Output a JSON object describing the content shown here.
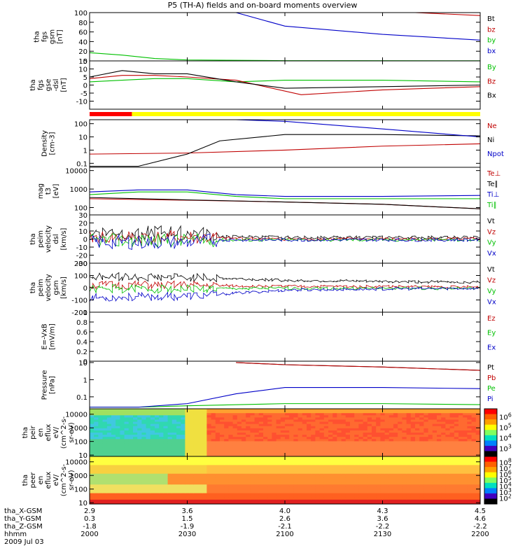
{
  "title": "P5 (TH-A) fields and on-board moments overview",
  "chart_data": [
    {
      "type": "line",
      "id": "fgs-gsm",
      "ylabel": [
        "tha",
        "fgs",
        "gsm",
        "[nT]"
      ],
      "yticks": [
        0,
        20,
        40,
        60,
        80,
        100
      ],
      "ylim": [
        0,
        100
      ],
      "series": [
        {
          "name": "Bt",
          "color": "#000000",
          "x": [],
          "y": []
        },
        {
          "name": "bz",
          "color": "#c00000",
          "x": [
            2140,
            2200
          ],
          "y": [
            100,
            94
          ]
        },
        {
          "name": "by",
          "color": "#00c000",
          "x": [
            2000,
            2010,
            2020,
            2030,
            2100,
            2200
          ],
          "y": [
            17,
            12,
            5,
            2,
            0.5,
            0.3
          ]
        },
        {
          "name": "bx",
          "color": "#0000c8",
          "x": [
            2045,
            2100,
            2130,
            2200
          ],
          "y": [
            100,
            72,
            55,
            43
          ]
        }
      ]
    },
    {
      "type": "line",
      "id": "fgs-gse-dsl",
      "ylabel": [
        "tha",
        "fgs",
        "gse",
        "-dsl",
        "[nT]"
      ],
      "yticks": [
        -10,
        -5,
        0,
        5,
        10,
        15
      ],
      "ylim": [
        -15,
        15
      ],
      "series": [
        {
          "name": "By",
          "color": "#00c000",
          "x": [
            2000,
            2010,
            2020,
            2030,
            2045,
            2100,
            2130,
            2200
          ],
          "y": [
            2,
            3,
            4,
            4,
            2,
            3,
            3,
            2
          ]
        },
        {
          "name": "Bz",
          "color": "#c00000",
          "x": [
            2000,
            2010,
            2020,
            2030,
            2045,
            2105,
            2130,
            2200
          ],
          "y": [
            4,
            6,
            6,
            5,
            3,
            -6,
            -3,
            -1
          ]
        },
        {
          "name": "Bx",
          "color": "#000000",
          "x": [
            2000,
            2010,
            2020,
            2030,
            2045,
            2100,
            2130,
            2200
          ],
          "y": [
            5,
            9,
            7,
            7,
            2,
            -2,
            -1,
            0
          ]
        }
      ]
    },
    {
      "type": "line",
      "id": "density",
      "ylabel": [
        "Density",
        "[cm-3]"
      ],
      "scale": "log",
      "yticks": [
        0.1,
        1,
        10,
        100
      ],
      "ylim": [
        0.05,
        200
      ],
      "series": [
        {
          "name": "Ne",
          "color": "#c00000",
          "x": [
            2000,
            2030,
            2100,
            2130,
            2200
          ],
          "y": [
            0.5,
            0.6,
            1.0,
            2.0,
            3.0
          ]
        },
        {
          "name": "Ni",
          "color": "#000000",
          "x": [
            2000,
            2015,
            2030,
            2040,
            2100,
            2130,
            2200
          ],
          "y": [
            0.06,
            0.06,
            0.5,
            5,
            15,
            15,
            12
          ]
        },
        {
          "name": "Npot",
          "color": "#0000c8",
          "x": [
            2045,
            2100,
            2130,
            2200
          ],
          "y": [
            200,
            150,
            40,
            10
          ]
        }
      ]
    },
    {
      "type": "line",
      "id": "temperature",
      "ylabel": [
        "mag",
        "t3",
        "[eV]"
      ],
      "scale": "log",
      "yticks": [
        100,
        1000,
        10000
      ],
      "ylim": [
        40,
        15000
      ],
      "series": [
        {
          "name": "Te⊥",
          "color": "#c00000",
          "x": [
            2000,
            2030,
            2100,
            2130,
            2200
          ],
          "y": [
            300,
            250,
            200,
            150,
            85
          ]
        },
        {
          "name": "Te∥",
          "color": "#000000",
          "x": [
            2000,
            2030,
            2100,
            2130,
            2200
          ],
          "y": [
            350,
            260,
            200,
            150,
            85
          ]
        },
        {
          "name": "Ti⊥",
          "color": "#0000c8",
          "x": [
            2000,
            2015,
            2030,
            2045,
            2100,
            2130,
            2200
          ],
          "y": [
            700,
            900,
            900,
            500,
            400,
            400,
            450
          ]
        },
        {
          "name": "Ti∥",
          "color": "#00c000",
          "x": [
            2000,
            2015,
            2030,
            2045,
            2100,
            2130,
            2200
          ],
          "y": [
            500,
            700,
            700,
            400,
            300,
            300,
            300
          ]
        }
      ]
    },
    {
      "type": "line",
      "id": "peim-velocity-dsl",
      "ylabel": [
        "tha",
        "peim",
        "velocity",
        "dsl",
        "[km/s]"
      ],
      "yticks": [
        -30,
        -20,
        -10,
        0,
        10,
        20,
        30
      ],
      "ylim": [
        -30,
        30
      ],
      "series": [
        {
          "name": "Vt",
          "color": "#000000",
          "x": [
            2000,
            2030,
            2040,
            2100,
            2200
          ],
          "y": [
            8,
            8,
            3,
            2,
            2
          ]
        },
        {
          "name": "Vz",
          "color": "#c00000",
          "x": [
            2000,
            2030,
            2040,
            2100,
            2200
          ],
          "y": [
            2,
            2,
            1,
            0,
            0
          ]
        },
        {
          "name": "Vy",
          "color": "#00c000",
          "x": [
            2000,
            2030,
            2040,
            2100,
            2200
          ],
          "y": [
            -2,
            -2,
            -1,
            -1,
            -1
          ]
        },
        {
          "name": "Vx",
          "color": "#0000c8",
          "x": [
            2000,
            2030,
            2040,
            2100,
            2200
          ],
          "y": [
            -4,
            -4,
            -1,
            -1,
            -1
          ]
        }
      ]
    },
    {
      "type": "line",
      "id": "peim-velocity-gsm",
      "ylabel": [
        "tha",
        "peim",
        "velocity",
        "gsm",
        "[km/s]"
      ],
      "yticks": [
        -200,
        -100,
        0,
        100,
        200
      ],
      "ylim": [
        -200,
        200
      ],
      "series": [
        {
          "name": "Vt",
          "color": "#000000",
          "x": [
            2000,
            2030,
            2100,
            2130,
            2200
          ],
          "y": [
            90,
            85,
            60,
            50,
            45
          ]
        },
        {
          "name": "Vz",
          "color": "#c00000",
          "x": [
            2000,
            2030,
            2100,
            2130,
            2200
          ],
          "y": [
            20,
            20,
            10,
            10,
            5
          ]
        },
        {
          "name": "Vy",
          "color": "#00c000",
          "x": [
            2000,
            2030,
            2100,
            2130,
            2200
          ],
          "y": [
            -10,
            -10,
            -5,
            -5,
            -5
          ]
        },
        {
          "name": "Vx",
          "color": "#0000c8",
          "x": [
            2000,
            2030,
            2100,
            2130,
            2200
          ],
          "y": [
            -80,
            -70,
            -20,
            -10,
            -5
          ]
        }
      ]
    },
    {
      "type": "line",
      "id": "efield",
      "ylabel": [
        "E=-VxB",
        "[mV/m]"
      ],
      "yticks": [
        0.0,
        0.2,
        0.4,
        0.6,
        0.8,
        1.0
      ],
      "ylim": [
        0,
        1
      ],
      "series": [
        {
          "name": "Ez",
          "color": "#c00000",
          "x": [],
          "y": []
        },
        {
          "name": "Ey",
          "color": "#00c000",
          "x": [],
          "y": []
        },
        {
          "name": "Ex",
          "color": "#0000c8",
          "x": [],
          "y": []
        }
      ]
    },
    {
      "type": "line",
      "id": "pressure",
      "ylabel": [
        "Pressure",
        "[nPa]"
      ],
      "scale": "log",
      "yticks": [
        0.1,
        1.0,
        10.0
      ],
      "ylim": [
        0.02,
        12
      ],
      "series": [
        {
          "name": "Pt",
          "color": "#000000",
          "x": [
            2045,
            2100,
            2130,
            2200
          ],
          "y": [
            10,
            7.5,
            5.5,
            3.5
          ]
        },
        {
          "name": "Pb",
          "color": "#c00000",
          "x": [
            2045,
            2100,
            2130,
            2200
          ],
          "y": [
            10,
            7.5,
            5.5,
            3.5
          ]
        },
        {
          "name": "Pe",
          "color": "#00c000",
          "x": [
            2000,
            2015,
            2030,
            2100,
            2130,
            2200
          ],
          "y": [
            0.025,
            0.025,
            0.03,
            0.04,
            0.04,
            0.035
          ]
        },
        {
          "name": "Pi",
          "color": "#0000c8",
          "x": [
            2000,
            2015,
            2030,
            2045,
            2100,
            2130,
            2200
          ],
          "y": [
            0.025,
            0.025,
            0.04,
            0.15,
            0.35,
            0.35,
            0.3
          ]
        }
      ]
    },
    {
      "type": "heatmap",
      "id": "peir-en-eflux",
      "ylabel": [
        "tha",
        "peir",
        "en",
        "eflux",
        "eV/",
        "(cm^2-s-",
        "sr-eV)"
      ],
      "scale": "log",
      "yticks": [
        10,
        100,
        1000,
        10000
      ],
      "ylim": [
        8,
        25000
      ],
      "colorbar": {
        "ticks": [
          "10^3",
          "10^4",
          "10^5",
          "10^6"
        ],
        "range": [
          100,
          5000000
        ],
        "scale": "log"
      }
    },
    {
      "type": "heatmap",
      "id": "peer-en-eflux",
      "ylabel": [
        "tha",
        "peer",
        "en",
        "eflux",
        "eV/",
        "(cm^2-s-",
        "sr-eV)"
      ],
      "scale": "log",
      "yticks": [
        10,
        100,
        1000,
        10000
      ],
      "ylim": [
        8,
        25000
      ],
      "colorbar": {
        "ticks": [
          "10^2",
          "10^3",
          "10^4",
          "10^5",
          "10^6",
          "10^7",
          "10^8"
        ],
        "range": [
          100,
          100000000
        ],
        "scale": "log"
      }
    }
  ],
  "xaxis": {
    "ticks": [
      2000,
      2030,
      2100,
      2130,
      2200
    ],
    "range": [
      2000,
      2200
    ]
  },
  "footer": {
    "rows": [
      {
        "label": "tha_X-GSM",
        "values": [
          "2.9",
          "3.6",
          "4.0",
          "4.3",
          "4.5"
        ]
      },
      {
        "label": "tha_Y-GSM",
        "values": [
          "0.3",
          "1.5",
          "2.6",
          "3.6",
          "4.6"
        ]
      },
      {
        "label": "tha_Z-GSM",
        "values": [
          "-1.8",
          "-1.9",
          "-2.1",
          "-2.2",
          "-2.2"
        ]
      },
      {
        "label": "hhmm",
        "values": [
          "2000",
          "2030",
          "2100",
          "2130",
          "2200"
        ]
      }
    ],
    "date": "2009 Jul 03"
  },
  "mode_bar": {
    "segments": [
      {
        "color": "#ff0000",
        "from": 2000,
        "to": 2013
      },
      {
        "color": "#ffff00",
        "from": 2013,
        "to": 2200
      }
    ]
  }
}
